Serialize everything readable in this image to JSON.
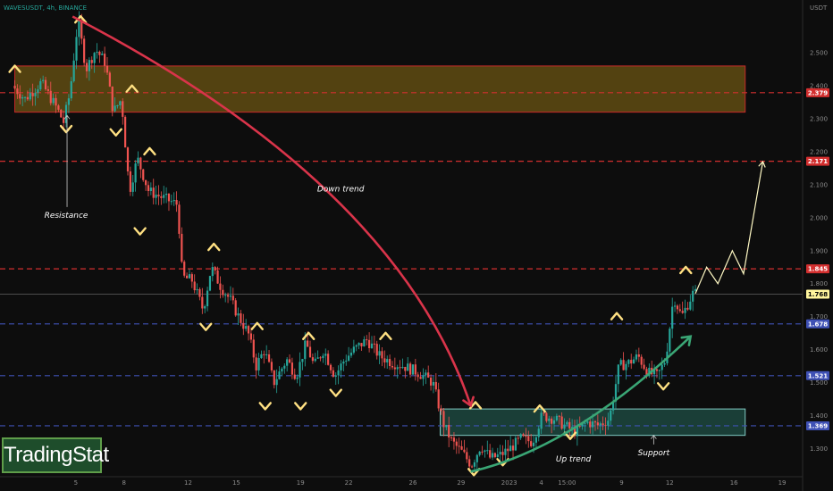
{
  "chart_data": {
    "type": "candlestick",
    "title": "WAVESUSDT, 4h, BINANCE",
    "currency": "USDT",
    "ylim": [
      1.22,
      2.66
    ],
    "y_ticks": [
      2.5,
      2.4,
      2.3,
      2.2,
      2.1,
      2.0,
      1.9,
      1.8,
      1.7,
      1.6,
      1.5,
      1.4,
      1.3
    ],
    "x_ticks": [
      {
        "label": "5",
        "t": 5
      },
      {
        "label": "8",
        "t": 8
      },
      {
        "label": "12",
        "t": 12
      },
      {
        "label": "15",
        "t": 15
      },
      {
        "label": "19",
        "t": 19
      },
      {
        "label": "22",
        "t": 22
      },
      {
        "label": "26",
        "t": 26
      },
      {
        "label": "29",
        "t": 29
      },
      {
        "label": "2023",
        "t": 32
      },
      {
        "label": "4",
        "t": 34
      },
      {
        "label": "15:00",
        "t": 35.6
      },
      {
        "label": "9",
        "t": 39
      },
      {
        "label": "12",
        "t": 42
      },
      {
        "label": "16",
        "t": 46
      },
      {
        "label": "19",
        "t": 49
      }
    ],
    "levels": [
      {
        "value": 2.379,
        "label": "2.379",
        "color": "#d32f2f"
      },
      {
        "value": 2.171,
        "label": "2.171",
        "color": "#d32f2f"
      },
      {
        "value": 1.845,
        "label": "1.845",
        "color": "#d32f2f"
      },
      {
        "value": 1.768,
        "label": "1.768",
        "color": "#fff59d"
      },
      {
        "value": 1.678,
        "label": "1.678",
        "color": "#3f51b5"
      },
      {
        "value": 1.521,
        "label": "1.521",
        "color": "#3f51b5"
      },
      {
        "value": 1.369,
        "label": "1.369",
        "color": "#3f51b5"
      }
    ],
    "zones": [
      {
        "name": "resistance-zone",
        "t0": 1.2,
        "t1": 46.7,
        "y0": 2.32,
        "y1": 2.46,
        "fill": "#6b5413",
        "stroke": "#c62828"
      },
      {
        "name": "support-zone",
        "t0": 27.7,
        "t1": 46.7,
        "y0": 1.34,
        "y1": 1.42,
        "fill": "#1f4f45",
        "stroke": "#80cbc4"
      }
    ],
    "price_path": [
      [
        1.2,
        2.4
      ],
      [
        2.0,
        2.36
      ],
      [
        3.0,
        2.41
      ],
      [
        4.0,
        2.33
      ],
      [
        4.4,
        2.29
      ],
      [
        4.8,
        2.38
      ],
      [
        5.3,
        2.6
      ],
      [
        5.8,
        2.45
      ],
      [
        6.4,
        2.51
      ],
      [
        7.0,
        2.47
      ],
      [
        7.5,
        2.32
      ],
      [
        8.0,
        2.36
      ],
      [
        8.5,
        2.08
      ],
      [
        9.0,
        2.18
      ],
      [
        9.7,
        2.08
      ],
      [
        10.6,
        2.06
      ],
      [
        11.5,
        2.04
      ],
      [
        11.8,
        1.82
      ],
      [
        12.4,
        1.81
      ],
      [
        13.1,
        1.72
      ],
      [
        13.6,
        1.85
      ],
      [
        14.2,
        1.79
      ],
      [
        14.8,
        1.75
      ],
      [
        15.3,
        1.7
      ],
      [
        15.9,
        1.65
      ],
      [
        16.4,
        1.55
      ],
      [
        16.9,
        1.6
      ],
      [
        17.5,
        1.5
      ],
      [
        18.3,
        1.57
      ],
      [
        18.9,
        1.52
      ],
      [
        19.5,
        1.62
      ],
      [
        20.0,
        1.55
      ],
      [
        20.6,
        1.6
      ],
      [
        21.3,
        1.52
      ],
      [
        21.9,
        1.57
      ],
      [
        22.5,
        1.6
      ],
      [
        23.3,
        1.63
      ],
      [
        24.1,
        1.58
      ],
      [
        24.9,
        1.56
      ],
      [
        25.6,
        1.55
      ],
      [
        26.5,
        1.53
      ],
      [
        27.4,
        1.5
      ],
      [
        28.1,
        1.37
      ],
      [
        28.6,
        1.32
      ],
      [
        29.2,
        1.29
      ],
      [
        29.8,
        1.25
      ],
      [
        30.4,
        1.31
      ],
      [
        31.0,
        1.27
      ],
      [
        31.6,
        1.28
      ],
      [
        32.2,
        1.3
      ],
      [
        32.9,
        1.33
      ],
      [
        33.6,
        1.32
      ],
      [
        34.2,
        1.4
      ],
      [
        35.0,
        1.39
      ],
      [
        35.6,
        1.37
      ],
      [
        36.3,
        1.35
      ],
      [
        37.0,
        1.38
      ],
      [
        37.7,
        1.37
      ],
      [
        38.4,
        1.39
      ],
      [
        39.0,
        1.55
      ],
      [
        39.6,
        1.56
      ],
      [
        40.2,
        1.58
      ],
      [
        40.8,
        1.53
      ],
      [
        41.4,
        1.52
      ],
      [
        41.9,
        1.57
      ],
      [
        42.4,
        1.76
      ],
      [
        42.9,
        1.7
      ],
      [
        43.6,
        1.77
      ]
    ],
    "projection": [
      [
        43.6,
        1.77
      ],
      [
        44.3,
        1.85
      ],
      [
        45.0,
        1.8
      ],
      [
        45.9,
        1.9
      ],
      [
        46.6,
        1.83
      ],
      [
        47.8,
        2.17
      ]
    ],
    "swing_highs": [
      [
        5.3,
        2.6
      ],
      [
        1.2,
        2.45
      ],
      [
        8.5,
        2.39
      ],
      [
        9.6,
        2.2
      ],
      [
        13.6,
        1.91
      ],
      [
        16.3,
        1.67
      ],
      [
        19.5,
        1.64
      ],
      [
        24.3,
        1.64
      ],
      [
        29.9,
        1.43
      ],
      [
        33.9,
        1.42
      ],
      [
        38.7,
        1.7
      ],
      [
        43.0,
        1.84
      ]
    ],
    "swing_lows": [
      [
        4.4,
        2.27
      ],
      [
        7.5,
        2.26
      ],
      [
        9.0,
        1.96
      ],
      [
        13.1,
        1.67
      ],
      [
        16.8,
        1.43
      ],
      [
        19.0,
        1.43
      ],
      [
        21.2,
        1.47
      ],
      [
        29.8,
        1.23
      ],
      [
        31.6,
        1.26
      ],
      [
        35.8,
        1.34
      ],
      [
        41.6,
        1.49
      ]
    ],
    "annotations": [
      {
        "text": "Resistance",
        "t": 4.4,
        "y": 2.0,
        "arrow_to": 2.31
      },
      {
        "text": "Down trend",
        "t": 21.5,
        "y": 2.08
      },
      {
        "text": "Up trend",
        "t": 36.0,
        "y": 1.26
      },
      {
        "text": "Support",
        "t": 41.0,
        "y": 1.28,
        "arrow_to": 1.34
      }
    ],
    "down_trend_curve": [
      [
        4.8,
        2.61
      ],
      [
        25.0,
        2.1
      ],
      [
        29.6,
        1.43
      ]
    ],
    "up_trend_curve": [
      [
        29.6,
        1.23
      ],
      [
        36.0,
        1.3
      ],
      [
        43.3,
        1.64
      ]
    ]
  },
  "brand": {
    "label": "TradingStat"
  }
}
